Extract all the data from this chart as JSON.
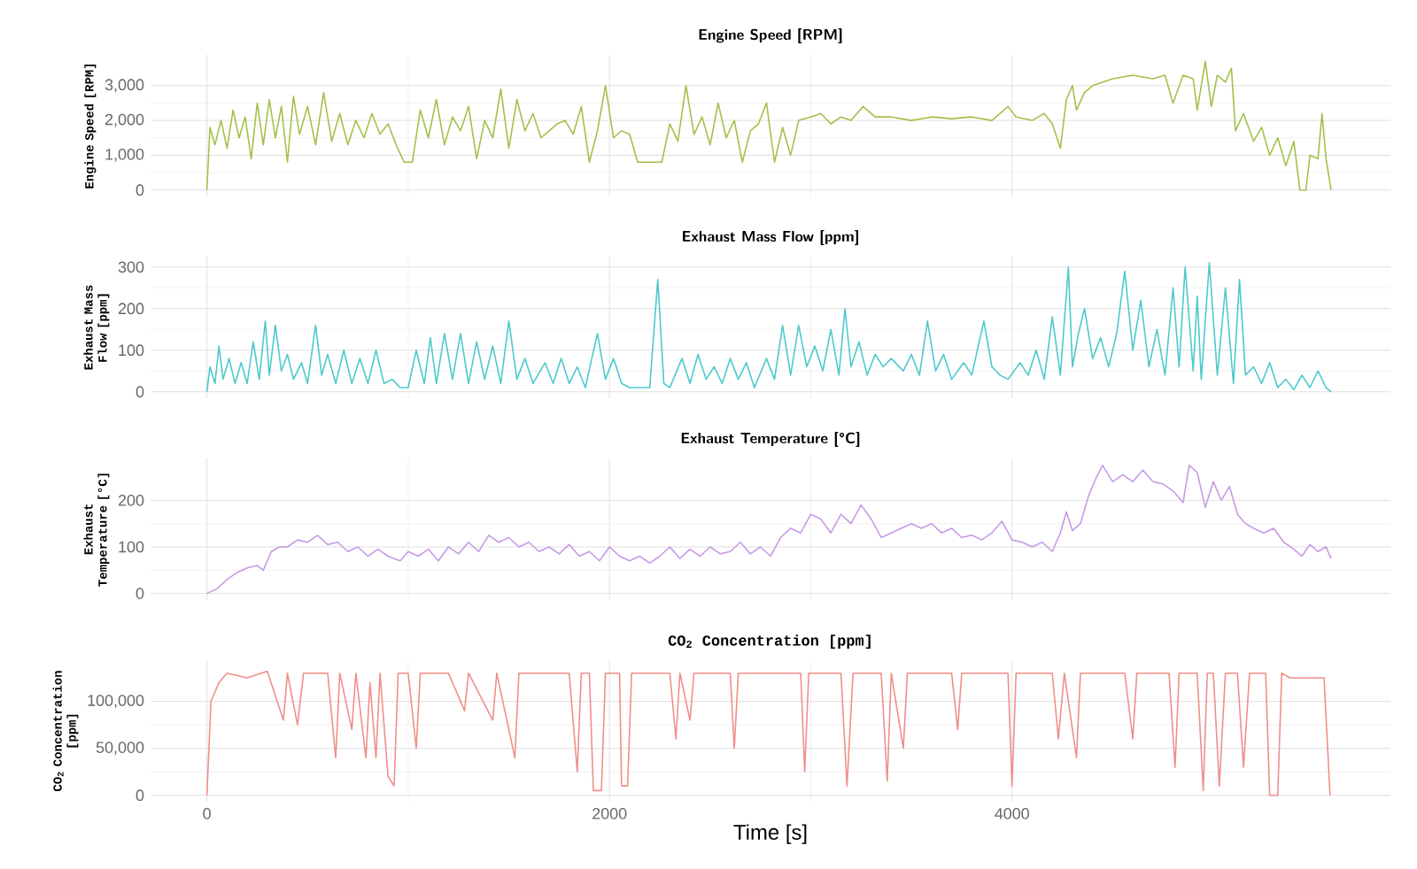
{
  "chart_data": [
    {
      "type": "line",
      "title": "Engine Speed [RPM]",
      "ylabel": "Engine Speed [RPM]",
      "color": "#a3c14a",
      "grid": true,
      "tick_labels": "y",
      "xlim": [
        -280,
        5880
      ],
      "xticks": [
        0,
        2000,
        4000
      ],
      "ylim": [
        -185,
        3885
      ],
      "yticks": [
        0,
        {
          "value": 1000,
          "label": "1,000"
        },
        {
          "value": 2000,
          "label": "2,000"
        },
        {
          "value": 3000,
          "label": "3,000"
        }
      ],
      "x": [
        0,
        15,
        40,
        70,
        100,
        130,
        160,
        190,
        220,
        250,
        280,
        310,
        340,
        370,
        400,
        430,
        460,
        500,
        540,
        580,
        620,
        660,
        700,
        740,
        780,
        820,
        860,
        900,
        940,
        980,
        1020,
        1060,
        1100,
        1140,
        1180,
        1220,
        1260,
        1300,
        1340,
        1380,
        1420,
        1460,
        1500,
        1540,
        1580,
        1620,
        1660,
        1700,
        1740,
        1780,
        1820,
        1860,
        1900,
        1940,
        1980,
        2020,
        2060,
        2100,
        2140,
        2200,
        2260,
        2300,
        2340,
        2380,
        2420,
        2460,
        2500,
        2540,
        2580,
        2620,
        2660,
        2700,
        2740,
        2780,
        2820,
        2860,
        2900,
        2940,
        3000,
        3050,
        3100,
        3150,
        3200,
        3260,
        3320,
        3400,
        3500,
        3600,
        3700,
        3800,
        3900,
        3980,
        4020,
        4100,
        4160,
        4200,
        4240,
        4270,
        4300,
        4320,
        4360,
        4400,
        4450,
        4500,
        4600,
        4700,
        4760,
        4800,
        4850,
        4900,
        4920,
        4960,
        4990,
        5020,
        5060,
        5090,
        5110,
        5150,
        5200,
        5240,
        5280,
        5320,
        5360,
        5400,
        5430,
        5460,
        5480,
        5520,
        5540,
        5560,
        5585
      ],
      "values": [
        0,
        1800,
        1300,
        2000,
        1200,
        2300,
        1500,
        2100,
        900,
        2500,
        1300,
        2600,
        1500,
        2400,
        800,
        2700,
        1600,
        2400,
        1300,
        2800,
        1400,
        2200,
        1300,
        2000,
        1500,
        2200,
        1600,
        1900,
        1300,
        800,
        800,
        2300,
        1500,
        2600,
        1300,
        2100,
        1700,
        2400,
        900,
        2000,
        1500,
        2900,
        1200,
        2600,
        1700,
        2200,
        1500,
        1700,
        1900,
        2000,
        1600,
        2400,
        800,
        1700,
        3000,
        1500,
        1700,
        1600,
        800,
        800,
        800,
        1900,
        1400,
        3000,
        1600,
        2100,
        1300,
        2500,
        1500,
        2000,
        800,
        1700,
        1900,
        2500,
        800,
        1800,
        1000,
        2000,
        2100,
        2200,
        1900,
        2100,
        2000,
        2400,
        2100,
        2100,
        2000,
        2100,
        2050,
        2100,
        2000,
        2400,
        2100,
        2000,
        2200,
        1900,
        1200,
        2600,
        3000,
        2300,
        2800,
        3000,
        3100,
        3200,
        3300,
        3200,
        3300,
        2500,
        3300,
        3200,
        2300,
        3700,
        2400,
        3300,
        3100,
        3500,
        1700,
        2200,
        1400,
        1800,
        1000,
        1500,
        700,
        1400,
        0,
        0,
        1000,
        900,
        2200,
        900,
        0
      ]
    },
    {
      "type": "line",
      "title": "Exhaust Mass Flow [ppm]",
      "ylabel": "Exhaust Mass Flow [ppm]",
      "color": "#4dc9cc",
      "grid": true,
      "tick_labels": "y",
      "xlim": [
        -280,
        5880
      ],
      "xticks": [
        0,
        2000,
        4000
      ],
      "ylim": [
        -15.5,
        325
      ],
      "yticks": [
        0,
        100,
        200,
        300
      ],
      "x": [
        0,
        15,
        40,
        60,
        80,
        110,
        140,
        170,
        200,
        230,
        260,
        290,
        310,
        340,
        370,
        400,
        430,
        470,
        500,
        540,
        570,
        600,
        640,
        680,
        720,
        760,
        800,
        840,
        880,
        920,
        960,
        1000,
        1040,
        1080,
        1110,
        1140,
        1180,
        1220,
        1260,
        1300,
        1340,
        1380,
        1420,
        1460,
        1500,
        1540,
        1580,
        1620,
        1680,
        1720,
        1760,
        1800,
        1840,
        1880,
        1940,
        1980,
        2020,
        2060,
        2100,
        2160,
        2200,
        2240,
        2270,
        2300,
        2360,
        2400,
        2440,
        2480,
        2520,
        2560,
        2600,
        2640,
        2680,
        2720,
        2780,
        2820,
        2860,
        2900,
        2940,
        2980,
        3020,
        3060,
        3100,
        3140,
        3170,
        3200,
        3240,
        3280,
        3320,
        3360,
        3400,
        3460,
        3500,
        3540,
        3580,
        3620,
        3660,
        3700,
        3760,
        3800,
        3860,
        3900,
        3940,
        3980,
        4040,
        4080,
        4120,
        4160,
        4200,
        4240,
        4280,
        4300,
        4330,
        4360,
        4400,
        4440,
        4480,
        4520,
        4560,
        4600,
        4640,
        4680,
        4720,
        4760,
        4800,
        4830,
        4860,
        4900,
        4920,
        4940,
        4980,
        5020,
        5060,
        5100,
        5130,
        5160,
        5200,
        5240,
        5280,
        5320,
        5360,
        5400,
        5440,
        5480,
        5520,
        5560,
        5585
      ],
      "values": [
        0,
        60,
        20,
        110,
        30,
        80,
        20,
        70,
        20,
        120,
        30,
        170,
        40,
        160,
        50,
        90,
        30,
        70,
        20,
        160,
        40,
        90,
        20,
        100,
        20,
        80,
        20,
        100,
        20,
        30,
        10,
        10,
        100,
        20,
        130,
        20,
        140,
        30,
        140,
        20,
        120,
        30,
        110,
        20,
        170,
        30,
        80,
        20,
        70,
        20,
        80,
        20,
        60,
        10,
        140,
        30,
        80,
        20,
        10,
        10,
        10,
        270,
        20,
        10,
        80,
        20,
        90,
        30,
        60,
        20,
        80,
        30,
        70,
        10,
        80,
        30,
        160,
        40,
        160,
        60,
        110,
        50,
        150,
        40,
        200,
        60,
        120,
        40,
        90,
        60,
        80,
        50,
        90,
        40,
        170,
        50,
        90,
        30,
        70,
        40,
        170,
        60,
        40,
        30,
        70,
        40,
        100,
        30,
        180,
        40,
        300,
        60,
        140,
        200,
        80,
        130,
        60,
        140,
        290,
        100,
        220,
        60,
        150,
        40,
        250,
        60,
        300,
        50,
        230,
        30,
        310,
        40,
        250,
        20,
        270,
        40,
        60,
        20,
        70,
        10,
        30,
        5,
        40,
        10,
        50,
        10,
        0
      ]
    },
    {
      "type": "line",
      "title": "Exhaust Temperature [°C]",
      "ylabel": "Exhaust Temperature [°C]",
      "color": "#c79be8",
      "grid": true,
      "tick_labels": "y",
      "xlim": [
        -280,
        5880
      ],
      "xticks": [
        0,
        2000,
        4000
      ],
      "ylim": [
        -14,
        290
      ],
      "yticks": [
        0,
        100,
        200
      ],
      "x": [
        0,
        50,
        100,
        150,
        200,
        250,
        280,
        320,
        360,
        400,
        450,
        500,
        550,
        600,
        650,
        700,
        750,
        800,
        850,
        900,
        960,
        1000,
        1050,
        1100,
        1150,
        1200,
        1250,
        1300,
        1350,
        1400,
        1450,
        1500,
        1550,
        1600,
        1650,
        1700,
        1750,
        1800,
        1850,
        1900,
        1950,
        2000,
        2050,
        2100,
        2150,
        2200,
        2250,
        2300,
        2350,
        2400,
        2450,
        2500,
        2550,
        2600,
        2650,
        2700,
        2750,
        2800,
        2850,
        2900,
        2950,
        3000,
        3050,
        3100,
        3150,
        3200,
        3250,
        3300,
        3350,
        3400,
        3450,
        3500,
        3550,
        3600,
        3650,
        3700,
        3750,
        3800,
        3850,
        3900,
        3950,
        4000,
        4050,
        4100,
        4150,
        4200,
        4240,
        4270,
        4300,
        4340,
        4380,
        4420,
        4450,
        4500,
        4550,
        4600,
        4650,
        4700,
        4750,
        4800,
        4850,
        4880,
        4920,
        4960,
        5000,
        5040,
        5080,
        5120,
        5160,
        5200,
        5250,
        5300,
        5350,
        5400,
        5440,
        5480,
        5520,
        5560,
        5585
      ],
      "values": [
        0,
        10,
        30,
        45,
        55,
        60,
        50,
        90,
        100,
        100,
        115,
        110,
        125,
        105,
        110,
        90,
        100,
        80,
        95,
        80,
        70,
        90,
        80,
        95,
        70,
        100,
        85,
        110,
        90,
        125,
        110,
        120,
        100,
        110,
        90,
        100,
        85,
        105,
        80,
        90,
        70,
        100,
        80,
        70,
        80,
        65,
        80,
        100,
        75,
        95,
        80,
        100,
        85,
        90,
        110,
        85,
        100,
        80,
        120,
        140,
        130,
        170,
        160,
        130,
        170,
        150,
        190,
        160,
        120,
        130,
        140,
        150,
        140,
        150,
        130,
        140,
        120,
        125,
        115,
        130,
        155,
        115,
        110,
        100,
        110,
        90,
        130,
        175,
        135,
        150,
        210,
        250,
        275,
        240,
        255,
        240,
        265,
        240,
        235,
        220,
        195,
        275,
        260,
        185,
        240,
        200,
        230,
        170,
        150,
        140,
        130,
        140,
        110,
        95,
        80,
        105,
        90,
        100,
        75
      ]
    },
    {
      "type": "line",
      "title": "CO$_{2}$ Concentration [ppm]",
      "ylabel": "CO$_{2}$ Concentration [ppm]",
      "xlabel": "Time [s]",
      "color": "#ef8f8a",
      "grid": true,
      "xlim": [
        -280,
        5880
      ],
      "xticks": [
        0,
        2000,
        4000
      ],
      "ylim": [
        -6850,
        143850
      ],
      "yticks": [
        0,
        {
          "value": 50000,
          "label": "50,000"
        },
        {
          "value": 100000,
          "label": "100,000"
        }
      ],
      "x": [
        0,
        20,
        60,
        100,
        200,
        300,
        380,
        400,
        450,
        480,
        600,
        640,
        660,
        720,
        740,
        790,
        810,
        840,
        860,
        900,
        930,
        950,
        1000,
        1040,
        1060,
        1200,
        1280,
        1300,
        1420,
        1440,
        1530,
        1550,
        1800,
        1840,
        1860,
        1900,
        1920,
        1960,
        1980,
        2050,
        2060,
        2090,
        2110,
        2300,
        2330,
        2350,
        2400,
        2420,
        2600,
        2620,
        2640,
        2950,
        2970,
        2990,
        3150,
        3180,
        3210,
        3350,
        3380,
        3400,
        3460,
        3480,
        3700,
        3730,
        3750,
        3980,
        4000,
        4020,
        4200,
        4230,
        4260,
        4320,
        4340,
        4560,
        4600,
        4620,
        4780,
        4810,
        4830,
        4920,
        4950,
        4970,
        5000,
        5030,
        5060,
        5120,
        5150,
        5180,
        5260,
        5280,
        5320,
        5340,
        5380,
        5550,
        5580
      ],
      "values": [
        0,
        100000,
        120000,
        130000,
        125000,
        132000,
        80000,
        130000,
        75000,
        130000,
        130000,
        40000,
        130000,
        70000,
        130000,
        40000,
        120000,
        40000,
        130000,
        20000,
        10000,
        130000,
        130000,
        50000,
        130000,
        130000,
        90000,
        130000,
        80000,
        130000,
        40000,
        130000,
        130000,
        25000,
        130000,
        130000,
        5000,
        5000,
        130000,
        130000,
        10000,
        10000,
        130000,
        130000,
        60000,
        130000,
        80000,
        130000,
        130000,
        50000,
        130000,
        130000,
        25000,
        130000,
        130000,
        10000,
        130000,
        130000,
        15000,
        130000,
        50000,
        130000,
        130000,
        70000,
        130000,
        130000,
        10000,
        130000,
        130000,
        60000,
        130000,
        40000,
        130000,
        130000,
        60000,
        130000,
        130000,
        30000,
        130000,
        130000,
        5000,
        130000,
        130000,
        10000,
        130000,
        130000,
        30000,
        130000,
        130000,
        0,
        0,
        130000,
        125000,
        125000,
        0
      ]
    }
  ]
}
